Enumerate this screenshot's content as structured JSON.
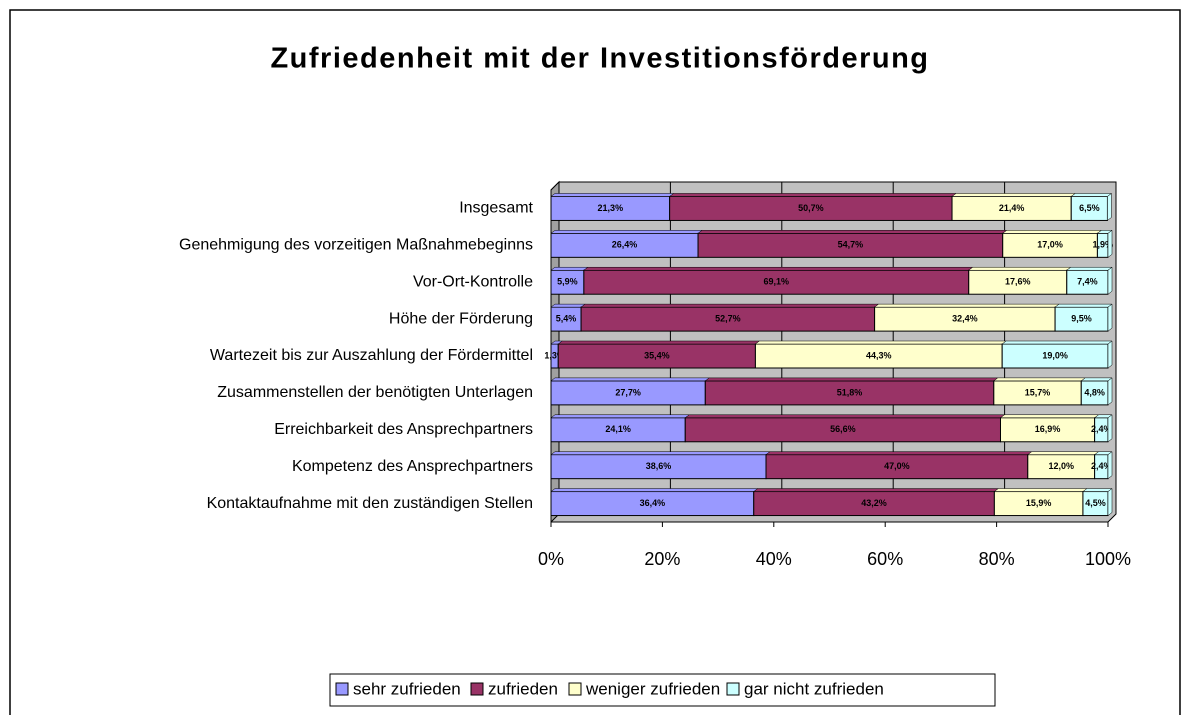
{
  "chart_data": {
    "type": "stacked_bar_horizontal",
    "title": "Zufriedenheit mit der Investitionsförderung",
    "categories": [
      "Insgesamt",
      "Genehmigung des vorzeitigen Maßnahmebeginns",
      "Vor-Ort-Kontrolle",
      "Höhe der Förderung",
      "Wartezeit bis zur Auszahlung der Fördermittel",
      "Zusammenstellen der benötigten Unterlagen",
      "Erreichbarkeit des Ansprechpartners",
      "Kompetenz des Ansprechpartners",
      "Kontaktaufnahme mit den zuständigen Stellen"
    ],
    "series": [
      {
        "name": "sehr zufrieden",
        "color": "#9999ff",
        "values": [
          21.3,
          26.4,
          5.9,
          5.4,
          1.3,
          27.7,
          24.1,
          38.6,
          36.4
        ],
        "value_labels": [
          "21,3%",
          "26,4%",
          "5,9%",
          "5,4%",
          "1,3%",
          "27,7%",
          "24,1%",
          "38,6%",
          "36,4%"
        ]
      },
      {
        "name": "zufrieden",
        "color": "#993366",
        "values": [
          50.7,
          54.7,
          69.1,
          52.7,
          35.4,
          51.8,
          56.6,
          47.0,
          43.2
        ],
        "value_labels": [
          "50,7%",
          "54,7%",
          "69,1%",
          "52,7%",
          "35,4%",
          "51,8%",
          "56,6%",
          "47,0%",
          "43,2%"
        ]
      },
      {
        "name": "weniger zufrieden",
        "color": "#ffffcc",
        "values": [
          21.4,
          17.0,
          17.6,
          32.4,
          44.3,
          15.7,
          16.9,
          12.0,
          15.9
        ],
        "value_labels": [
          "21,4%",
          "17,0%",
          "17,6%",
          "32,4%",
          "44,3%",
          "15,7%",
          "16,9%",
          "12,0%",
          "15,9%"
        ]
      },
      {
        "name": "gar nicht zufrieden",
        "color": "#ccffff",
        "values": [
          6.5,
          1.9,
          7.4,
          9.5,
          19.0,
          4.8,
          2.4,
          2.4,
          4.5
        ],
        "value_labels": [
          "6,5%",
          "1,9%",
          "7,4%",
          "9,5%",
          "19,0%",
          "4,8%",
          "2,4%",
          "2,4%",
          "4,5%"
        ]
      }
    ],
    "xlim": [
      0,
      100
    ],
    "xticks": [
      {
        "value": 0,
        "label": "0%"
      },
      {
        "value": 20,
        "label": "20%"
      },
      {
        "value": 40,
        "label": "40%"
      },
      {
        "value": 60,
        "label": "60%"
      },
      {
        "value": 80,
        "label": "80%"
      },
      {
        "value": 100,
        "label": "100%"
      }
    ],
    "grid": true,
    "legend": "bottom"
  }
}
